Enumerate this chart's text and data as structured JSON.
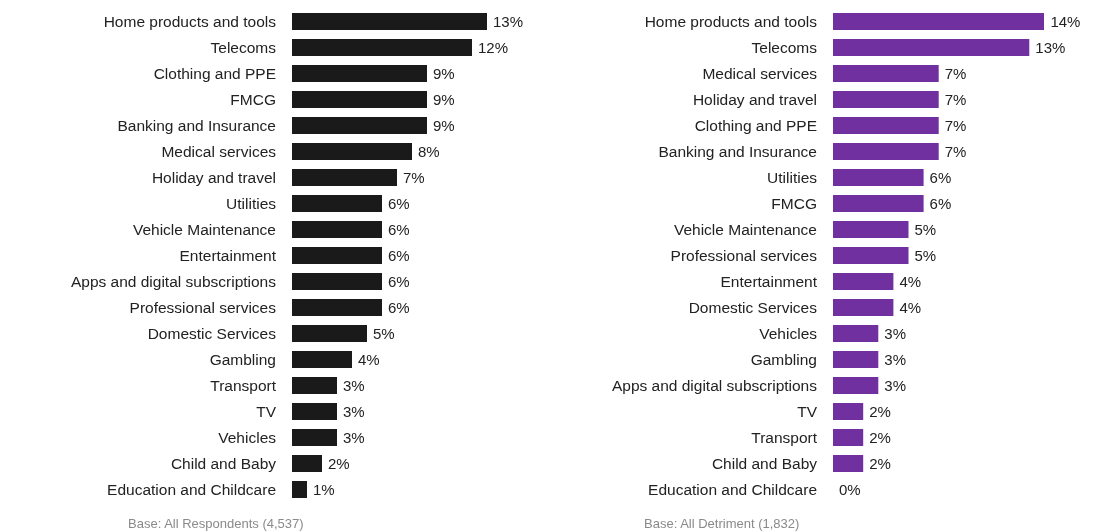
{
  "chart_data": [
    {
      "type": "bar",
      "orientation": "horizontal",
      "categories": [
        "Home products and tools",
        "Telecoms",
        "Clothing and PPE",
        "FMCG",
        "Banking and Insurance",
        "Medical services",
        "Holiday and travel",
        "Utilities",
        "Vehicle Maintenance",
        "Entertainment",
        "Apps and digital subscriptions",
        "Professional services",
        "Domestic Services",
        "Gambling",
        "Transport",
        "TV",
        "Vehicles",
        "Child and Baby",
        "Education and Childcare"
      ],
      "values": [
        13,
        12,
        9,
        9,
        9,
        8,
        7,
        6,
        6,
        6,
        6,
        6,
        5,
        4,
        3,
        3,
        3,
        2,
        1
      ],
      "value_labels": [
        "13%",
        "12%",
        "9%",
        "9%",
        "9%",
        "8%",
        "7%",
        "6%",
        "6%",
        "6%",
        "6%",
        "6%",
        "5%",
        "4%",
        "3%",
        "3%",
        "3%",
        "2%",
        "1%"
      ],
      "color": "#1a1a1a",
      "annotations": [
        "Base: All Respondents (4,537)"
      ]
    },
    {
      "type": "bar",
      "orientation": "horizontal",
      "categories": [
        "Home products and tools",
        "Telecoms",
        "Medical services",
        "Holiday and travel",
        "Clothing and PPE",
        "Banking and Insurance",
        "Utilities",
        "FMCG",
        "Vehicle Maintenance",
        "Professional services",
        "Entertainment",
        "Domestic Services",
        "Vehicles",
        "Gambling",
        "Apps and digital subscriptions",
        "TV",
        "Transport",
        "Child and Baby",
        "Education and Childcare"
      ],
      "values": [
        14,
        13,
        7,
        7,
        7,
        7,
        6,
        6,
        5,
        5,
        4,
        4,
        3,
        3,
        3,
        2,
        2,
        2,
        0
      ],
      "value_labels": [
        "14%",
        "13%",
        "7%",
        "7%",
        "7%",
        "7%",
        "6%",
        "6%",
        "5%",
        "5%",
        "4%",
        "4%",
        "3%",
        "3%",
        "3%",
        "2%",
        "2%",
        "2%",
        "0%"
      ],
      "color": "#7030a0",
      "annotations": [
        "Base: All Detriment (1,832)"
      ]
    }
  ]
}
